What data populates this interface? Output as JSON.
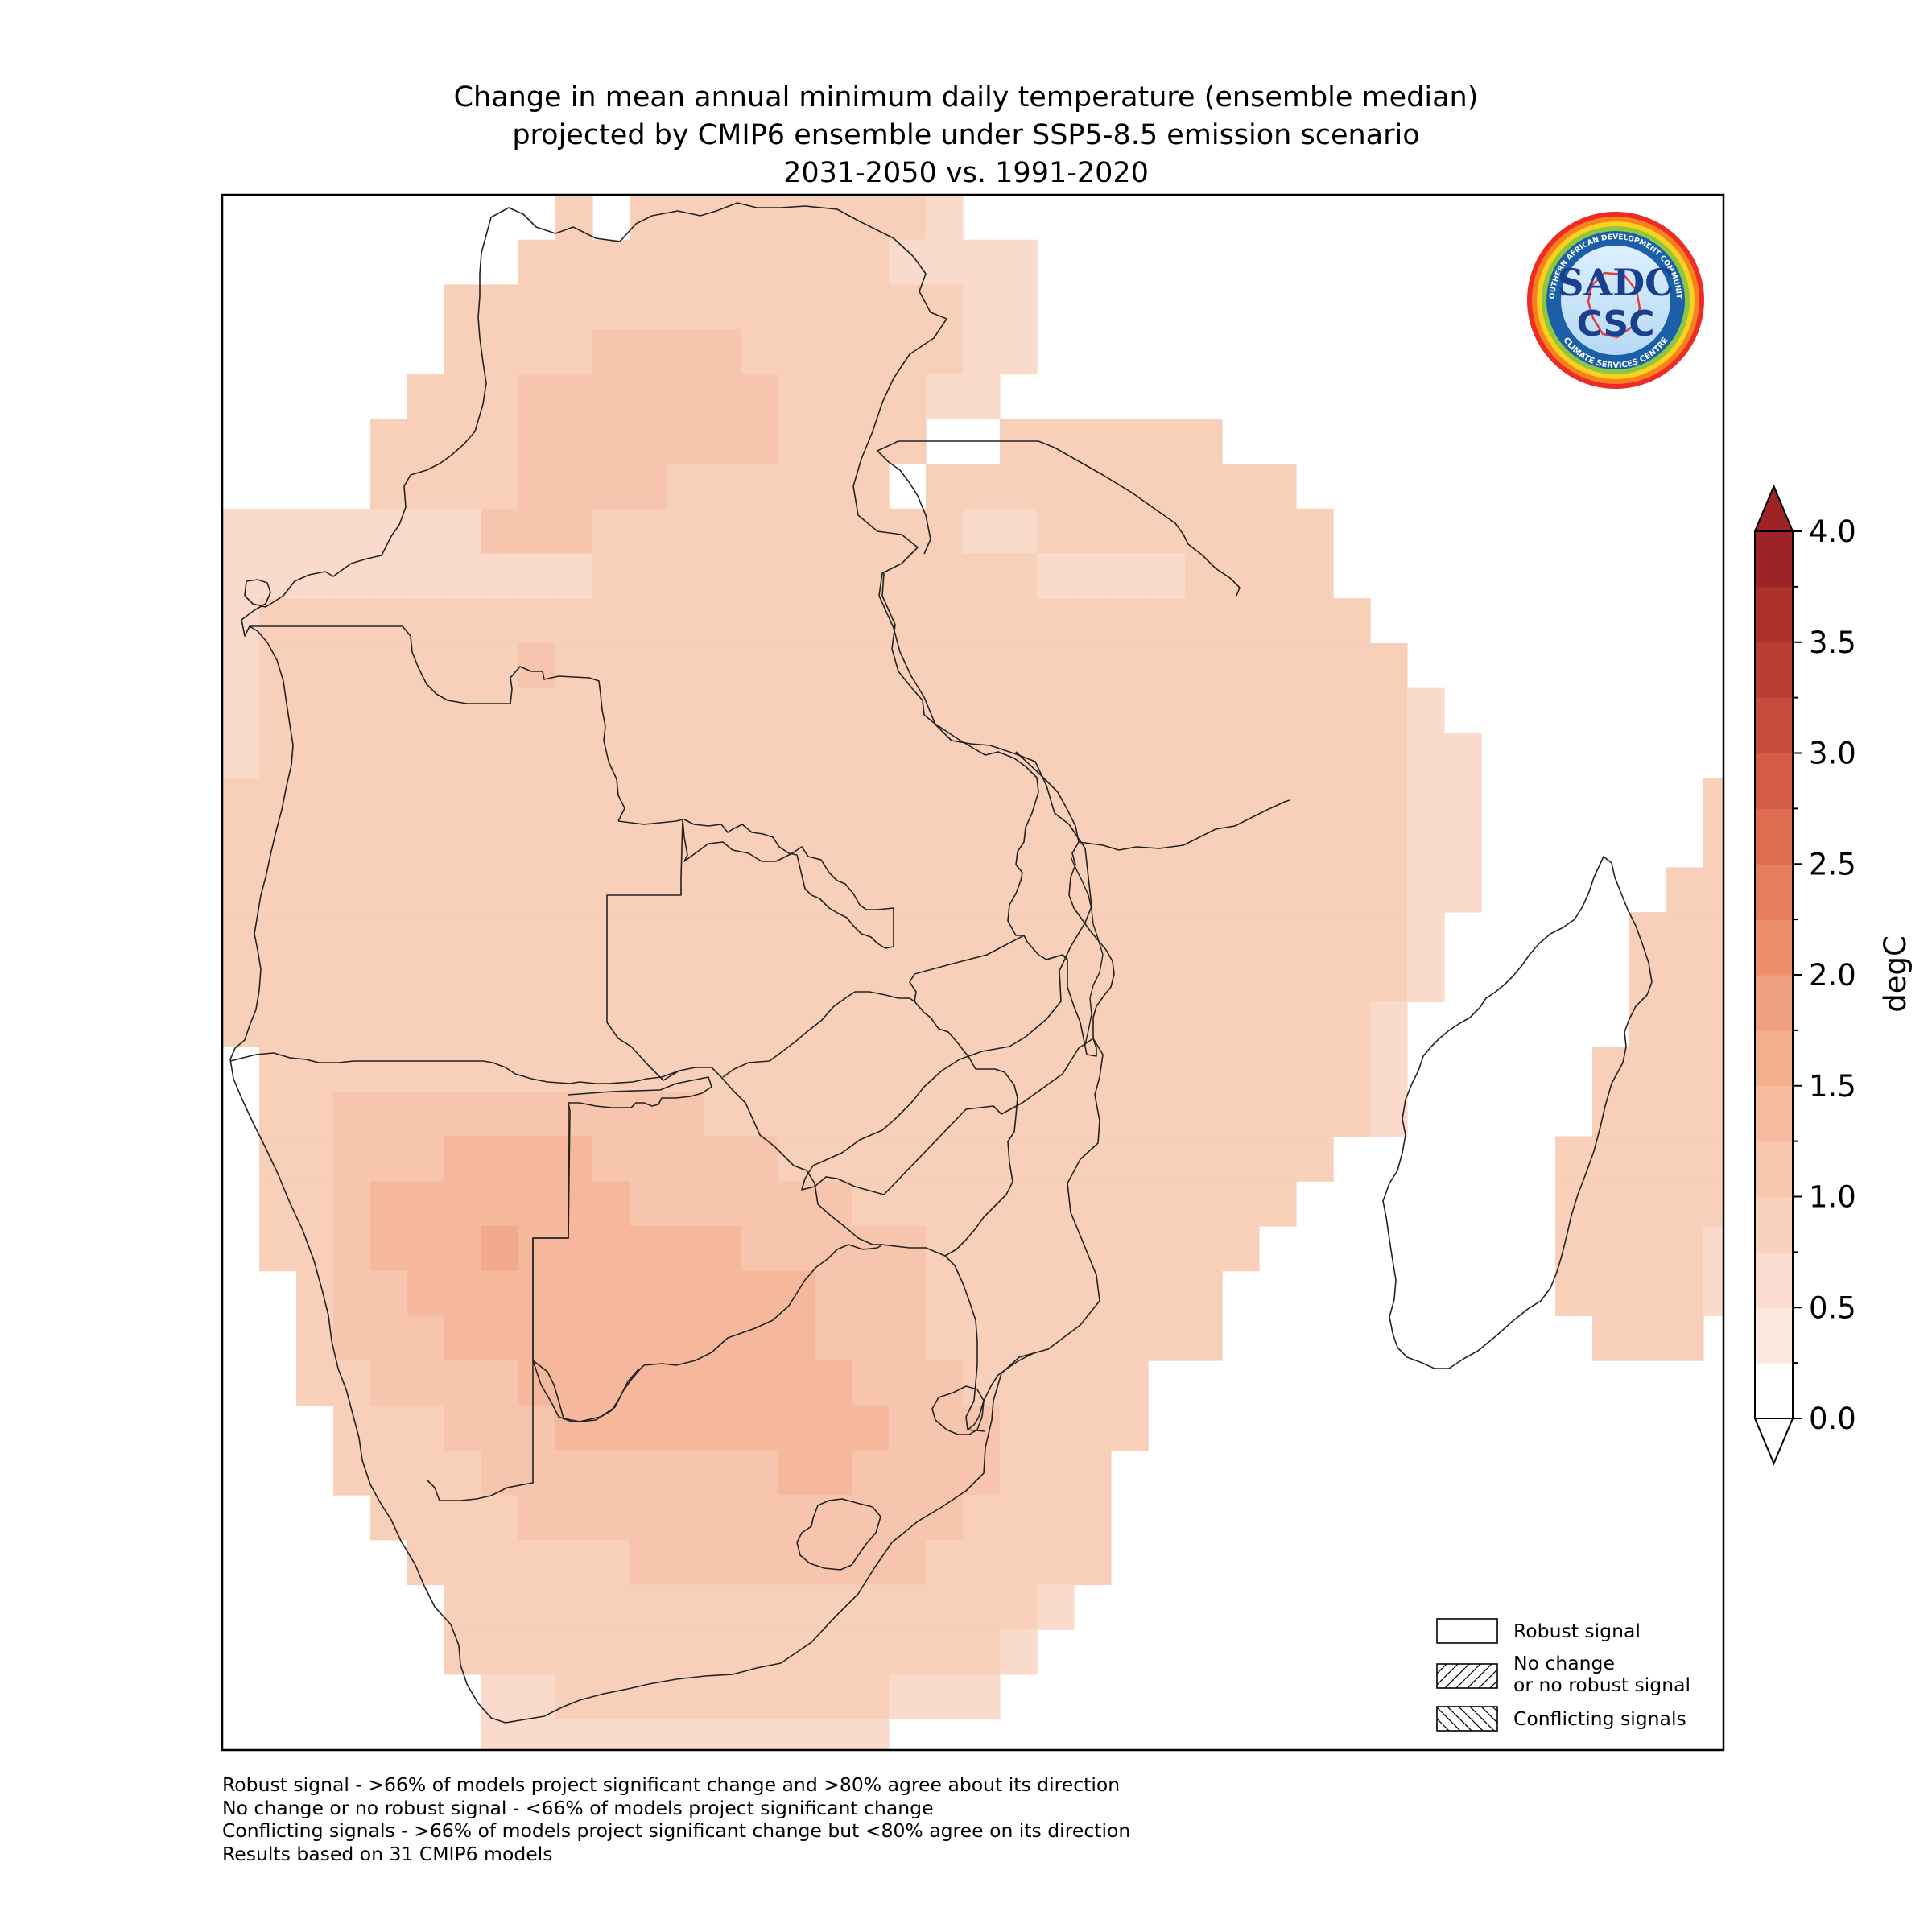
{
  "title": {
    "line1": "Change in mean annual minimum daily temperature (ensemble median)",
    "line2": "projected by CMIP6 ensemble under SSP5-8.5 emission scenario",
    "line3": "2031-2050 vs. 1991-2020"
  },
  "colorbar": {
    "label": "degC",
    "ticks": [
      "0.0",
      "0.5",
      "1.0",
      "1.5",
      "2.0",
      "2.5",
      "3.0",
      "3.5",
      "4.0"
    ],
    "min": 0.0,
    "max": 4.0,
    "step": 0.25,
    "extend": "both",
    "colors": [
      "#ffffff",
      "#fae7df",
      "#f9dccf",
      "#f8d2bf",
      "#f7c7ae",
      "#f5bb9e",
      "#f3ae8e",
      "#f0a07e",
      "#ec8f6d",
      "#e67e5e",
      "#de6c50",
      "#d45b45",
      "#c94b3b",
      "#bc3d34",
      "#ad302d",
      "#9e2327"
    ]
  },
  "legend": {
    "robust": "Robust signal",
    "no_change_1": "No change",
    "no_change_2": "or no robust signal",
    "conflicting": "Conflicting signals"
  },
  "footnotes": [
    "Robust signal - >66% of models project significant change and >80% agree about its direction",
    "No change or no robust signal - <66% of models project significant change",
    "Conflicting signals - >66% of models project significant change but <80% agree on its direction",
    "Results based on 31 CMIP6 models"
  ],
  "logo": {
    "top_text": "SOUTHERN AFRICAN DEVELOPMENT COMMUNITY",
    "bottom_text": "CLIMATE SERVICES CENTRE",
    "line1": "SADC",
    "line2": "CSC"
  },
  "map_data": {
    "variable": "Change in mean annual minimum daily temperature",
    "units": "degC",
    "region": "Southern Africa (SADC)",
    "value_classes": {
      "light": [
        0.75,
        1.0
      ],
      "pale": [
        1.0,
        1.25
      ],
      "medium": [
        1.25,
        1.5
      ],
      "strong": [
        1.5,
        1.75
      ]
    }
  }
}
